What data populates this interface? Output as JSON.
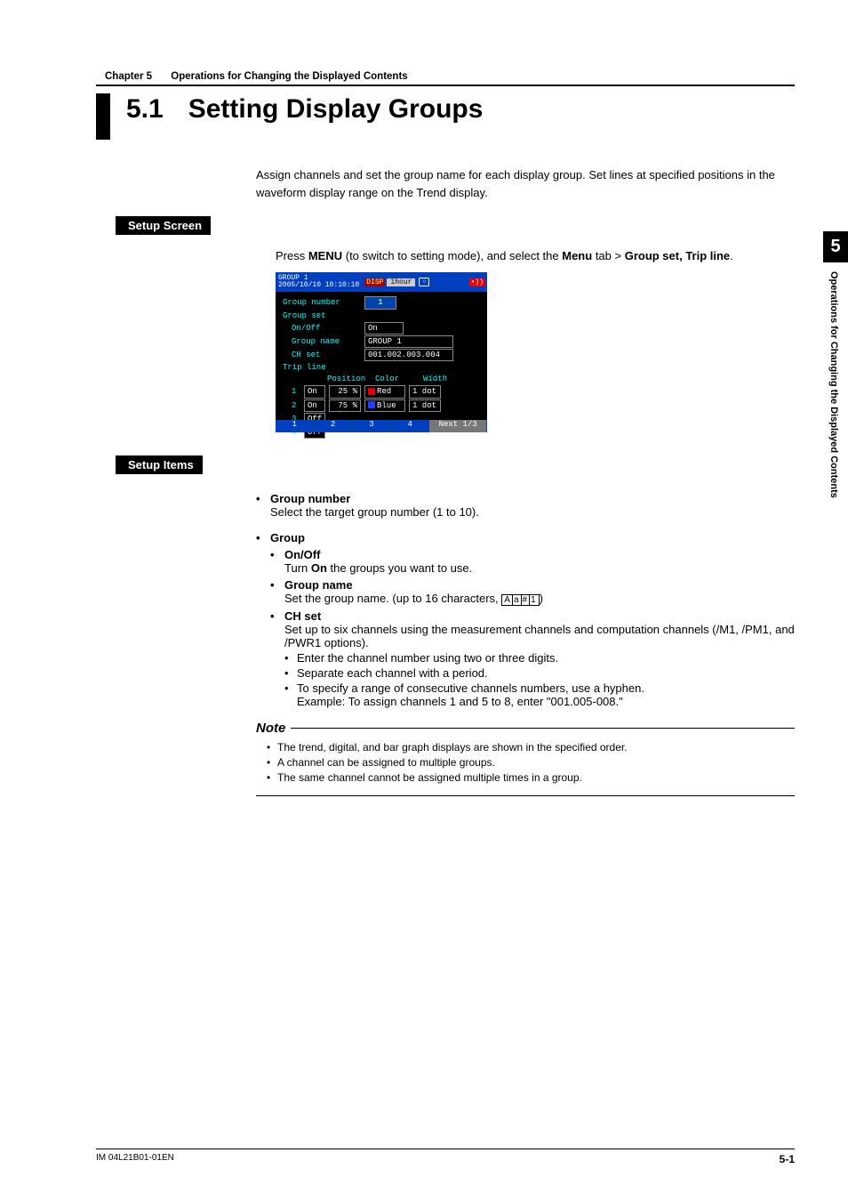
{
  "header": {
    "chapter_label": "Chapter 5",
    "chapter_title": "Operations for Changing the Displayed Contents"
  },
  "title": {
    "number": "5.1",
    "text": "Setting Display Groups"
  },
  "intro": "Assign channels and set the group name for each display group. Set lines at specified positions in the waveform display range on the Trend display.",
  "setup_screen": {
    "label": "Setup Screen",
    "press": "Press ",
    "menu1": "MENU",
    "mid": " (to switch to setting mode), and select the ",
    "menu2": "Menu",
    "tab": " tab > ",
    "item": "Group set, Trip line",
    "end": "."
  },
  "screenshot": {
    "top": {
      "group": "GROUP 1",
      "dt": "2005/10/10 10:10:10",
      "disp": "DISP",
      "hour": "1hour"
    },
    "rows": {
      "group_number_l": "Group number",
      "group_number_v": "1",
      "group_set_l": "Group set",
      "onoff_l": "On/Off",
      "onoff_v": "On",
      "groupname_l": "Group name",
      "groupname_v": "GROUP 1",
      "chset_l": "CH set",
      "chset_v": "001.002.003.004",
      "tripline_l": "Trip line",
      "h_pos": "Position",
      "h_col": "Color",
      "h_w": "Width"
    },
    "trips": [
      {
        "n": "1",
        "on": "On",
        "pos": "25 %",
        "color": "Red",
        "chex": "#e00000",
        "w": "1 dot"
      },
      {
        "n": "2",
        "on": "On",
        "pos": "75 %",
        "color": "Blue",
        "chex": "#2040ff",
        "w": "1 dot"
      },
      {
        "n": "3",
        "on": "Off",
        "pos": "",
        "color": "",
        "chex": "",
        "w": ""
      },
      {
        "n": "4",
        "on": "Off",
        "pos": "",
        "color": "",
        "chex": "",
        "w": ""
      }
    ],
    "foot": [
      "1",
      "2",
      "3",
      "4"
    ],
    "next": "Next 1/3"
  },
  "setup_items": {
    "label": "Setup Items",
    "group_number_h": "Group number",
    "group_number_d": "Select the target group number (1 to 10).",
    "group_h": "Group",
    "onoff_h": "On/Off",
    "onoff_d1": "Turn ",
    "onoff_b": "On",
    "onoff_d2": " the groups you want to use.",
    "gname_h": "Group name",
    "gname_d": "Set the group name. (up to 16 characters, ",
    "charbox": [
      "A",
      "a",
      "#",
      "1"
    ],
    "gname_end": ")",
    "chset_h": "CH set",
    "chset_d": "Set up to six channels using the measurement channels and computation channels (/M1, /PM1, and /PWR1 options).",
    "chset_b1": "Enter the channel number using two or three digits.",
    "chset_b2": "Separate each channel with a period.",
    "chset_b3a": "To specify a range of consecutive channels numbers, use a hyphen.",
    "chset_b3b": "Example: To assign channels 1 and 5 to 8, enter \"001.005-008.\""
  },
  "note": {
    "head": "Note",
    "n1": "The trend, digital, and bar graph displays are shown in the specified order.",
    "n2": "A channel can be assigned to multiple groups.",
    "n3": "The same channel cannot be assigned multiple times in a group."
  },
  "side": {
    "num": "5",
    "text": "Operations for Changing the Displayed Contents"
  },
  "footer": {
    "left": "IM 04L21B01-01EN",
    "right": "5-1"
  }
}
